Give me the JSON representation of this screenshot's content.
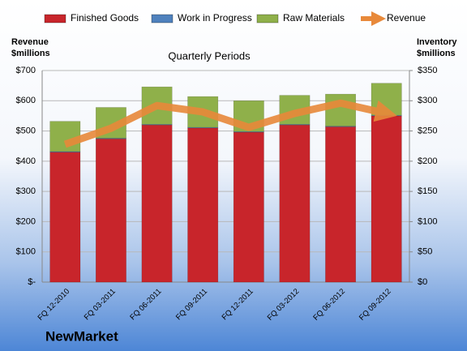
{
  "chart_data": {
    "type": "bar",
    "stacked": true,
    "title": "Quarterly Periods",
    "brand": "NewMarket",
    "y_label": [
      "Revenue",
      "$millions"
    ],
    "y2_label": [
      "Inventory",
      "$millions"
    ],
    "categories": [
      "FQ 12-2010",
      "FQ 03-2011",
      "FQ 06-2011",
      "FQ 09-2011",
      "FQ 12-2011",
      "FQ 03-2012",
      "FQ 06-2012",
      "FQ 09-2012"
    ],
    "series": [
      {
        "name": "Finished Goods",
        "color": "#c8252b",
        "type": "bar",
        "axis": "y2",
        "values": [
          215,
          237,
          260,
          255,
          248,
          260,
          257,
          275
        ]
      },
      {
        "name": "Work in Progress",
        "color": "#4f81bd",
        "type": "bar",
        "axis": "y2",
        "values": [
          1,
          1,
          1,
          1,
          1,
          1,
          1,
          1
        ]
      },
      {
        "name": "Raw Materials",
        "color": "#8fb04a",
        "type": "bar",
        "axis": "y2",
        "values": [
          50,
          51,
          62,
          51,
          51,
          48,
          53,
          53
        ]
      },
      {
        "name": "Revenue",
        "color": "#e8893a",
        "type": "line",
        "values": [
          456,
          509,
          584,
          563,
          512,
          558,
          592,
          558
        ]
      }
    ],
    "ylim": [
      0,
      700
    ],
    "yticks": [
      {
        "value": 0,
        "label": "$-"
      },
      {
        "value": 100,
        "label": "$100"
      },
      {
        "value": 200,
        "label": "$200"
      },
      {
        "value": 300,
        "label": "$300"
      },
      {
        "value": 400,
        "label": "$400"
      },
      {
        "value": 500,
        "label": "$500"
      },
      {
        "value": 600,
        "label": "$600"
      },
      {
        "value": 700,
        "label": "$700"
      }
    ],
    "y2lim": [
      0,
      350
    ],
    "y2ticks": [
      {
        "value": 0,
        "label": "$0"
      },
      {
        "value": 50,
        "label": "$50"
      },
      {
        "value": 100,
        "label": "$100"
      },
      {
        "value": 150,
        "label": "$150"
      },
      {
        "value": 200,
        "label": "$200"
      },
      {
        "value": 250,
        "label": "$250"
      },
      {
        "value": 300,
        "label": "$300"
      },
      {
        "value": 350,
        "label": "$350"
      }
    ],
    "grid": true,
    "legend": "top"
  }
}
